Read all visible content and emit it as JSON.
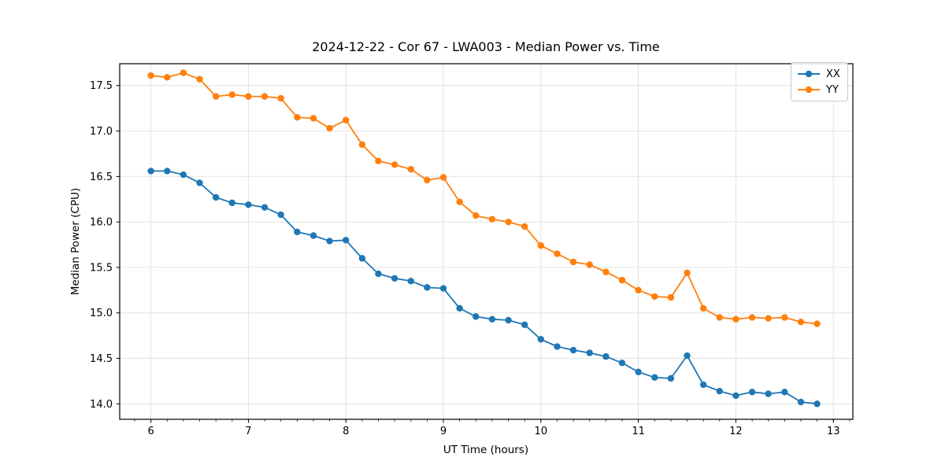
{
  "chart_data": {
    "type": "line",
    "title": "2024-12-22 - Cor 67 - LWA003 - Median Power vs. Time",
    "xlabel": "UT Time (hours)",
    "ylabel": "Median Power (CPU)",
    "xlim": [
      5.68,
      13.2
    ],
    "ylim": [
      13.83,
      17.74
    ],
    "x_major_ticks": [
      6,
      7,
      8,
      9,
      10,
      11,
      12,
      13
    ],
    "y_major_ticks": [
      14.0,
      14.5,
      15.0,
      15.5,
      16.0,
      16.5,
      17.0,
      17.5
    ],
    "x_minor_tick_step": 0.16667,
    "grid": true,
    "legend_position": "upper right",
    "background_color": "#ffffff",
    "grid_color": "#e0e0e0",
    "spine_color": "#000000",
    "x": [
      6.0,
      6.167,
      6.333,
      6.5,
      6.667,
      6.833,
      7.0,
      7.167,
      7.333,
      7.5,
      7.667,
      7.833,
      8.0,
      8.167,
      8.333,
      8.5,
      8.667,
      8.833,
      9.0,
      9.167,
      9.333,
      9.5,
      9.667,
      9.833,
      10.0,
      10.167,
      10.333,
      10.5,
      10.667,
      10.833,
      11.0,
      11.167,
      11.333,
      11.5,
      11.667,
      11.833,
      12.0,
      12.167,
      12.333,
      12.5,
      12.667,
      12.833
    ],
    "series": [
      {
        "name": "XX",
        "color": "#1f77b4",
        "values": [
          16.56,
          16.56,
          16.52,
          16.43,
          16.27,
          16.21,
          16.19,
          16.16,
          16.08,
          15.89,
          15.85,
          15.79,
          15.8,
          15.6,
          15.43,
          15.38,
          15.35,
          15.28,
          15.27,
          15.05,
          14.96,
          14.93,
          14.92,
          14.87,
          14.71,
          14.63,
          14.59,
          14.56,
          14.52,
          14.45,
          14.35,
          14.29,
          14.28,
          14.53,
          14.21,
          14.14,
          14.09,
          14.13,
          14.11,
          14.13,
          14.02,
          14.0
        ]
      },
      {
        "name": "YY",
        "color": "#ff7f0e",
        "values": [
          17.61,
          17.59,
          17.64,
          17.57,
          17.38,
          17.4,
          17.38,
          17.38,
          17.36,
          17.15,
          17.14,
          17.03,
          17.12,
          16.85,
          16.67,
          16.63,
          16.58,
          16.46,
          16.49,
          16.22,
          16.07,
          16.03,
          16.0,
          15.95,
          15.74,
          15.65,
          15.56,
          15.53,
          15.45,
          15.36,
          15.25,
          15.18,
          15.17,
          15.44,
          15.05,
          14.95,
          14.93,
          14.95,
          14.94,
          14.95,
          14.9,
          14.88
        ]
      }
    ]
  }
}
